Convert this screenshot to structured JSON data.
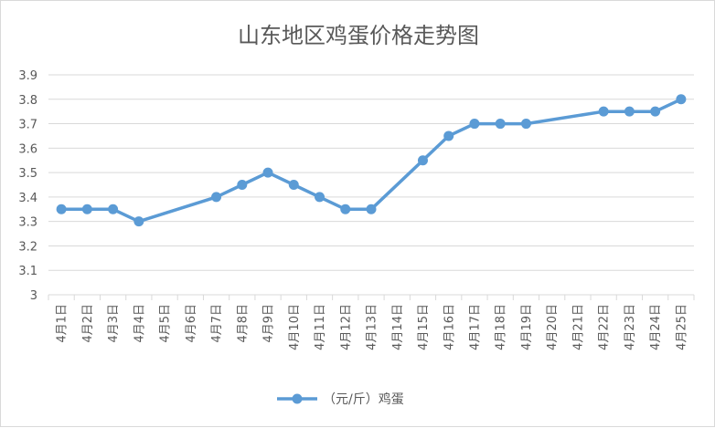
{
  "chart_data": {
    "type": "line",
    "title": "山东地区鸡蛋价格走势图",
    "xlabel": "",
    "ylabel": "",
    "ylim": [
      3,
      3.9
    ],
    "ytick_step": 0.1,
    "ytick_labels": [
      "3",
      "3.1",
      "3.2",
      "3.3",
      "3.4",
      "3.5",
      "3.6",
      "3.7",
      "3.8",
      "3.9"
    ],
    "grid": true,
    "legend_position": "bottom",
    "categories": [
      "4月1日",
      "4月2日",
      "4月3日",
      "4月4日",
      "4月5日",
      "4月6日",
      "4月7日",
      "4月8日",
      "4月9日",
      "4月10日",
      "4月11日",
      "4月12日",
      "4月13日",
      "4月14日",
      "4月15日",
      "4月16日",
      "4月17日",
      "4月18日",
      "4月19日",
      "4月20日",
      "4月21日",
      "4月22日",
      "4月23日",
      "4月24日",
      "4月25日"
    ],
    "series": [
      {
        "name": "（元/斤）鸡蛋",
        "color": "#5b9bd5",
        "values": [
          3.35,
          3.35,
          3.35,
          3.3,
          null,
          null,
          3.4,
          3.45,
          3.5,
          3.45,
          3.4,
          3.35,
          3.35,
          null,
          3.55,
          3.65,
          3.7,
          3.7,
          3.7,
          null,
          null,
          3.75,
          3.75,
          3.75,
          3.8
        ]
      }
    ],
    "colors": {
      "line": "#5b9bd5",
      "grid": "#d9d9d9",
      "text": "#595959"
    }
  }
}
